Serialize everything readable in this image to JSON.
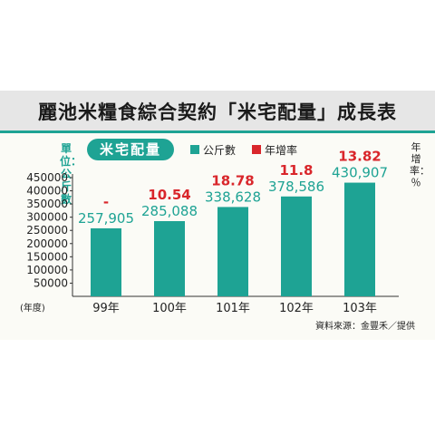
{
  "title": "麗池米糧食綜合契約「米宅配量」成長表",
  "y_unit_label": "單位：公斤數",
  "rate_axis_label": "年增率：％",
  "series_pill": "米宅配量",
  "legend": [
    {
      "label": "公斤數",
      "color": "#1ea394"
    },
    {
      "label": "年增率",
      "color": "#d9262b"
    }
  ],
  "source": "資料來源：金豐禾／提供",
  "colors": {
    "bar": "#1ea394",
    "rate": "#d9262b",
    "value": "#1ea394",
    "accent": "#1ea394"
  },
  "chart_data": {
    "type": "bar",
    "title": "麗池米糧食綜合契約「米宅配量」成長表",
    "x_axis_prefix": "(年度)",
    "categories": [
      "99年",
      "100年",
      "101年",
      "102年",
      "103年"
    ],
    "series": [
      {
        "name": "公斤數",
        "values": [
          257905,
          285088,
          338628,
          378586,
          430907
        ]
      },
      {
        "name": "年增率",
        "values": [
          null,
          10.54,
          18.78,
          11.8,
          13.82
        ]
      }
    ],
    "value_labels": [
      "257,905",
      "285,088",
      "338,628",
      "378,586",
      "430,907"
    ],
    "rate_labels": [
      "-",
      "10.54",
      "18.78",
      "11.8",
      "13.82"
    ],
    "ylabel": "單位：公斤數",
    "ylim": [
      0,
      450000
    ],
    "yticks": [
      50000,
      100000,
      150000,
      200000,
      250000,
      300000,
      350000,
      400000,
      450000
    ],
    "ytick_labels": [
      "50000",
      "100000",
      "150000",
      "200000",
      "250000",
      "300000",
      "350000",
      "400000",
      "450000"
    ],
    "grid": false,
    "legend_position": "top-left"
  }
}
